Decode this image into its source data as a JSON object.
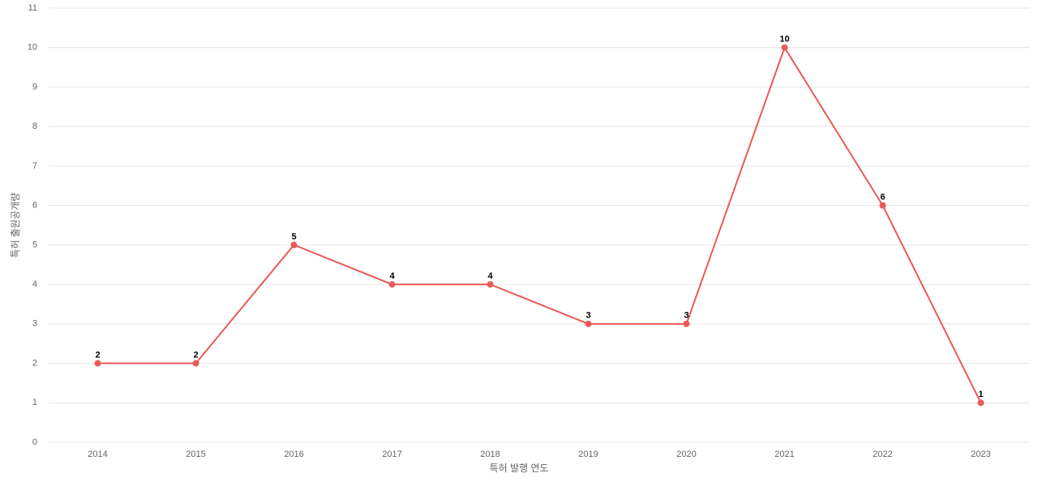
{
  "chart_data": {
    "type": "line",
    "x_label": "특허 발행 연도",
    "y_label": "특허 출원공개량",
    "categories": [
      "2014",
      "2015",
      "2016",
      "2017",
      "2018",
      "2019",
      "2020",
      "2021",
      "2022",
      "2023"
    ],
    "values": [
      2,
      2,
      5,
      4,
      4,
      3,
      3,
      10,
      6,
      1
    ],
    "color": "#e95a58",
    "ylim": [
      0,
      11
    ],
    "yticks": [
      0,
      1,
      2,
      3,
      4,
      5,
      6,
      7,
      8,
      9,
      10,
      11
    ],
    "grid": true
  }
}
